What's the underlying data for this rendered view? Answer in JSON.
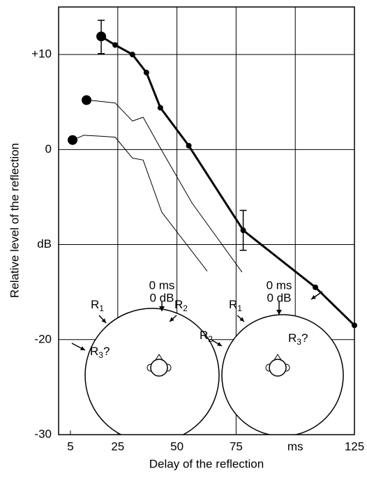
{
  "chart_data": {
    "type": "line",
    "xlabel": "Delay of the reflection",
    "ylabel": "Relative level of the reflection",
    "xlim": [
      0,
      125
    ],
    "xticks": [
      5,
      25,
      50,
      75,
      {
        "value": 100,
        "label": "ms"
      },
      125
    ],
    "ylim": [
      -30,
      15
    ],
    "yticks": [
      {
        "value": 10,
        "label": "+10"
      },
      0,
      {
        "value": -10,
        "label": "dB"
      },
      -20,
      -30
    ],
    "grid": true,
    "series": [
      {
        "color": "#000",
        "line_width": 3,
        "markers": "all",
        "x": [
          18,
          23.9,
          31.2,
          37.1,
          43,
          55,
          78,
          108.5,
          125
        ],
        "values": [
          11.9,
          11,
          10,
          8.1,
          4.4,
          0.4,
          -8.5,
          -14.5,
          -18.5
        ]
      },
      {
        "color": "#000",
        "line_width": 1,
        "markers": "first",
        "x": [
          11.8,
          16.5,
          23.9,
          31.2,
          35.7,
          43.6,
          56.3,
          77.5
        ],
        "values": [
          5.2,
          5.1,
          4.9,
          3.0,
          3.4,
          -0.1,
          -5.6,
          -12.9
        ]
      },
      {
        "color": "#000",
        "line_width": 1,
        "markers": "first",
        "x": [
          5.9,
          10.6,
          18,
          23.9,
          31.2,
          35.7,
          43.6,
          62.8
        ],
        "values": [
          1.0,
          1.5,
          1.4,
          1.3,
          -0.9,
          -1.1,
          -6.6,
          -12.8
        ]
      }
    ],
    "error_bars": [
      {
        "x": 18,
        "low": 10.1,
        "high": 13.6
      },
      {
        "x": 78,
        "low": -10.6,
        "high": -6.4
      }
    ],
    "diagrams": [
      {
        "delay": "0 ms",
        "level": "0 dB",
        "reflections": [
          {
            "text": "R",
            "sub": "1",
            "after": ""
          },
          {
            "text": "R",
            "sub": "2",
            "after": ""
          },
          {
            "text": "R",
            "sub": "3",
            "after": "?"
          }
        ]
      },
      {
        "delay": "0 ms",
        "level": "0 dB",
        "reflections": [
          {
            "text": "R",
            "sub": "1",
            "after": ""
          },
          {
            "text": "R",
            "sub": "2",
            "after": ""
          },
          {
            "text": "R",
            "sub": "3",
            "after": "?"
          }
        ]
      }
    ]
  }
}
